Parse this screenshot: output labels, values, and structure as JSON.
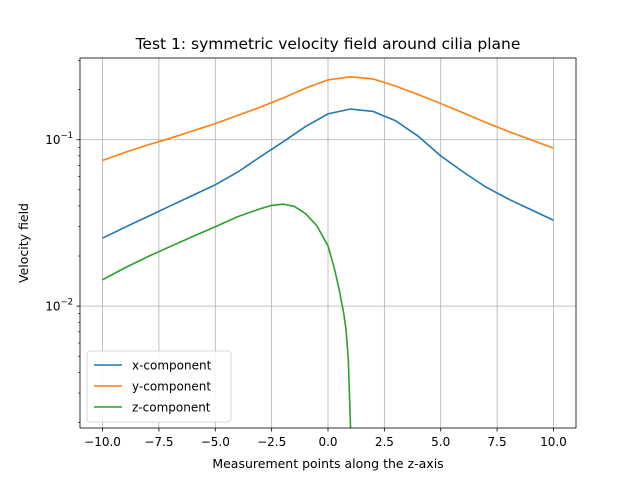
{
  "chart_data": {
    "type": "line",
    "title": "Test 1: symmetric velocity field around cilia plane",
    "xlabel": "Measurement points along the z-axis",
    "ylabel": "Velocity field",
    "xlim": [
      -11,
      11
    ],
    "ylim": [
      0.00185,
      0.31
    ],
    "yscale": "log",
    "grid": true,
    "legend_position": "lower-left",
    "xticks": [
      {
        "value": -10,
        "label": "−10.0"
      },
      {
        "value": -7.5,
        "label": "−7.5"
      },
      {
        "value": -5,
        "label": "−5.0"
      },
      {
        "value": -2.5,
        "label": "−2.5"
      },
      {
        "value": 0,
        "label": "0.0"
      },
      {
        "value": 2.5,
        "label": "2.5"
      },
      {
        "value": 5,
        "label": "5.0"
      },
      {
        "value": 7.5,
        "label": "7.5"
      },
      {
        "value": 10,
        "label": "10.0"
      }
    ],
    "yticks": [
      {
        "value": 0.01,
        "base": "10",
        "exp": "−2"
      },
      {
        "value": 0.1,
        "base": "10",
        "exp": "−1"
      }
    ],
    "series": [
      {
        "name": "x-component",
        "color": "#1f77b4",
        "x": [
          -10,
          -9,
          -8,
          -7,
          -6,
          -5,
          -4,
          -3,
          -2,
          -1,
          0,
          1,
          2,
          3,
          4,
          5,
          6,
          7,
          8,
          9,
          10
        ],
        "y": [
          0.0256,
          0.0298,
          0.0345,
          0.04,
          0.0463,
          0.0536,
          0.064,
          0.079,
          0.097,
          0.12,
          0.143,
          0.153,
          0.148,
          0.13,
          0.105,
          0.08,
          0.064,
          0.052,
          0.044,
          0.038,
          0.0328
        ]
      },
      {
        "name": "y-component",
        "color": "#ff7f0e",
        "x": [
          -10,
          -9,
          -8,
          -7,
          -6,
          -5,
          -4,
          -3,
          -2,
          -1,
          0,
          1,
          2,
          3,
          4,
          5,
          6,
          7,
          8,
          9,
          10
        ],
        "y": [
          0.075,
          0.084,
          0.093,
          0.102,
          0.113,
          0.125,
          0.14,
          0.157,
          0.178,
          0.204,
          0.229,
          0.239,
          0.232,
          0.21,
          0.187,
          0.165,
          0.145,
          0.127,
          0.112,
          0.1,
          0.089
        ]
      },
      {
        "name": "z-component",
        "color": "#2ca02c",
        "x": [
          -10,
          -9,
          -8,
          -7,
          -6,
          -5,
          -4,
          -3,
          -2.5,
          -2,
          -1.5,
          -1,
          -0.5,
          0,
          0.3,
          0.5,
          0.7,
          0.8,
          0.9,
          0.95,
          1.0
        ],
        "y": [
          0.0144,
          0.017,
          0.0198,
          0.0228,
          0.0262,
          0.03,
          0.0345,
          0.0385,
          0.0403,
          0.041,
          0.0398,
          0.036,
          0.0305,
          0.023,
          0.0165,
          0.0125,
          0.009,
          0.0072,
          0.0048,
          0.003,
          0.00185
        ]
      }
    ]
  }
}
